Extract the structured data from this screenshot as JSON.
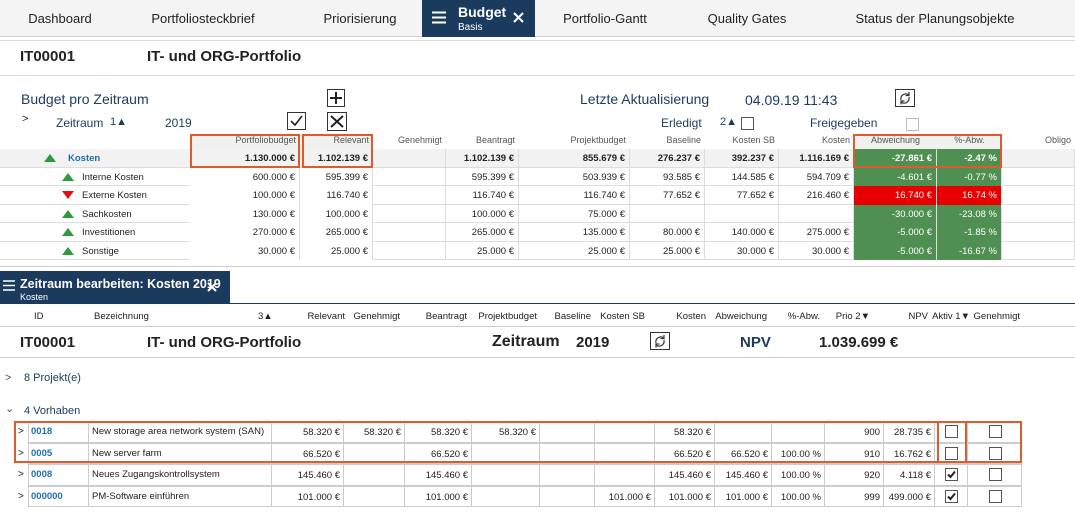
{
  "nav": {
    "tabs": [
      "Dashboard",
      "Portfoliosteckbrief",
      "Priorisierung",
      "Budget",
      "Portfolio-Gantt",
      "Quality Gates",
      "Status der Planungsobjekte"
    ],
    "active": 3,
    "active_subtitle": "Basis"
  },
  "header": {
    "id": "IT00001",
    "title": "IT- und ORG-Portfolio"
  },
  "budget": {
    "title": "Budget pro Zeitraum",
    "last_update_label": "Letzte Aktualisierung",
    "last_update": "04.09.19 11:43",
    "period_label": "Zeitraum",
    "period_sort": "1▲",
    "period": "2019",
    "done_label": "Erledigt",
    "done_sort": "2▲",
    "released_label": "Freigegeben",
    "columns": [
      "Portfoliobudget",
      "Relevant",
      "Genehmigt",
      "Beantragt",
      "Projektbudget",
      "Baseline",
      "Kosten SB",
      "Kosten",
      "Abweichung",
      "%-Abw.",
      "Obligo"
    ],
    "rows": [
      {
        "name": "Kosten",
        "trend": "up",
        "cells": [
          "1.130.000 €",
          "1.102.139 €",
          null,
          "1.102.139 €",
          "855.679 €",
          "276.237 €",
          "392.237 €",
          "1.116.169 €",
          "-27.861 €",
          "-2.47 %",
          null
        ]
      },
      {
        "name": "Interne Kosten",
        "trend": "up",
        "cells": [
          "600.000 €",
          "595.399 €",
          null,
          "595.399 €",
          "503.939 €",
          "93.585 €",
          "144.585 €",
          "594.709 €",
          "-4.601 €",
          "-0.77 %",
          null
        ]
      },
      {
        "name": "Externe Kosten",
        "trend": "down",
        "cells": [
          "100.000 €",
          "116.740 €",
          null,
          "116.740 €",
          "116.740 €",
          "77.652 €",
          "77.652 €",
          "216.460 €",
          "16.740 €",
          "16.74 %",
          null
        ]
      },
      {
        "name": "Sachkosten",
        "trend": "up",
        "cells": [
          "130.000 €",
          "100.000 €",
          null,
          "100.000 €",
          "75.000 €",
          null,
          null,
          null,
          "-30.000 €",
          "-23.08 %",
          null
        ]
      },
      {
        "name": "Investitionen",
        "trend": "up",
        "cells": [
          "270.000 €",
          "265.000 €",
          null,
          "265.000 €",
          "135.000 €",
          "80.000 €",
          "140.000 €",
          "275.000 €",
          "-5.000 €",
          "-1.85 %",
          null
        ]
      },
      {
        "name": "Sonstige",
        "trend": "up",
        "cells": [
          "30.000 €",
          "25.000 €",
          null,
          "25.000 €",
          "25.000 €",
          "25.000 €",
          "30.000 €",
          "30.000 €",
          "-5.000 €",
          "-16.67 %",
          null
        ]
      }
    ]
  },
  "editor": {
    "title": "Zeitraum bearbeiten: Kosten 2019",
    "subtitle": "Kosten",
    "id_header": "ID",
    "name_header": "Bezeichnung",
    "name_sort": "3▲",
    "columns": [
      "Relevant",
      "Genehmigt",
      "Beantragt",
      "Projektbudget",
      "Baseline",
      "Kosten SB",
      "Kosten",
      "Abweichung",
      "%-Abw.",
      "Prio 2▼",
      "NPV",
      "Aktiv 1▼",
      "Genehmigt"
    ],
    "summary": {
      "id": "IT00001",
      "title": "IT- und ORG-Portfolio",
      "period_label": "Zeitraum",
      "period": "2019",
      "npv_label": "NPV",
      "npv": "1.039.699 €"
    },
    "projects": "8 Projekt(e)",
    "proposals": "4 Vorhaben",
    "rows": [
      {
        "id": "0018",
        "name": "New storage area network system (SAN)",
        "cells": [
          "58.320 €",
          "58.320 €",
          "58.320 €",
          "58.320 €",
          null,
          null,
          "58.320 €",
          null,
          null,
          "900",
          "28.735 €"
        ],
        "aktiv": false,
        "genehmigt": false
      },
      {
        "id": "0005",
        "name": "New server farm",
        "cells": [
          "66.520 €",
          null,
          "66.520 €",
          null,
          null,
          null,
          "66.520 €",
          "66.520 €",
          "100.00 %",
          "910",
          "16.762 €"
        ],
        "aktiv": false,
        "genehmigt": false
      },
      {
        "id": "0008",
        "name": "Neues Zugangskontrollsystem",
        "cells": [
          "145.460 €",
          null,
          "145.460 €",
          null,
          null,
          null,
          "145.460 €",
          "145.460 €",
          "100.00 %",
          "920",
          "4.118 €"
        ],
        "aktiv": true,
        "genehmigt": false
      },
      {
        "id": "000000",
        "name": "PM-Software einführen",
        "cells": [
          "101.000 €",
          null,
          "101.000 €",
          null,
          null,
          "101.000 €",
          "101.000 €",
          "101.000 €",
          "100.00 %",
          "999",
          "499.000 €"
        ],
        "aktiv": true,
        "genehmigt": false
      }
    ]
  }
}
